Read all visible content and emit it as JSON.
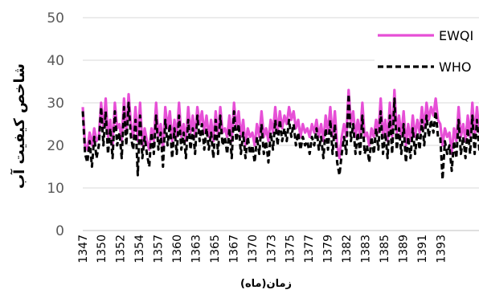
{
  "chart_data": {
    "type": "line",
    "title": "",
    "ylabel": "شاخص کیفیت آب",
    "xlabel": "زمان(ماه)",
    "ylim": [
      0,
      50
    ],
    "yticks": [
      0,
      10,
      20,
      30,
      40,
      50
    ],
    "grid": "horizontal",
    "legend_position": "top-right",
    "x_tick_labels": [
      "1347",
      "1350",
      "1352",
      "1354",
      "1357",
      "1360",
      "1363",
      "1365",
      "1367",
      "1370",
      "1373",
      "1375",
      "1377",
      "1379",
      "1382",
      "1383",
      "1385",
      "1389",
      "1391",
      "1393"
    ],
    "x_tick_fractions": [
      0.0,
      0.0465,
      0.0935,
      0.1405,
      0.1875,
      0.2345,
      0.2815,
      0.3285,
      0.3755,
      0.4225,
      0.4695,
      0.5165,
      0.5635,
      0.6105,
      0.6575,
      0.7045,
      0.7515,
      0.7985,
      0.8455,
      0.8925
    ],
    "series": [
      {
        "name": "EWQI",
        "color": "#e64fd6",
        "style": "solid",
        "values": [
          29,
          20,
          19,
          23,
          20,
          24,
          21,
          22,
          30,
          24,
          31,
          22,
          26,
          20,
          30,
          24,
          25,
          21,
          31,
          23,
          32,
          25,
          22,
          29,
          21,
          30,
          20,
          24,
          21,
          19,
          24,
          21,
          30,
          22,
          25,
          19,
          29,
          24,
          28,
          21,
          26,
          22,
          30,
          22,
          25,
          21,
          29,
          23,
          27,
          22,
          29,
          25,
          28,
          23,
          27,
          22,
          26,
          21,
          28,
          22,
          29,
          23,
          24,
          22,
          27,
          21,
          30,
          24,
          28,
          22,
          26,
          20,
          24,
          22,
          23,
          20,
          25,
          22,
          28,
          22,
          24,
          21,
          26,
          23,
          29,
          23,
          28,
          24,
          27,
          25,
          29,
          26,
          28,
          24,
          26,
          22,
          25,
          23,
          24,
          22,
          25,
          23,
          26,
          22,
          25,
          21,
          27,
          23,
          29,
          22,
          28,
          20,
          17,
          22,
          25,
          22,
          33,
          25,
          28,
          22,
          26,
          22,
          30,
          22,
          23,
          20,
          24,
          22,
          26,
          23,
          31,
          22,
          26,
          21,
          30,
          22,
          33,
          23,
          27,
          22,
          28,
          20,
          25,
          21,
          27,
          22,
          26,
          23,
          29,
          24,
          30,
          26,
          29,
          27,
          31,
          26,
          25,
          20,
          24,
          22,
          23,
          18,
          24,
          21,
          29,
          22,
          25,
          21,
          27,
          22,
          30,
          22,
          29,
          23,
          24,
          22
        ]
      },
      {
        "name": "WHO",
        "color": "#000000",
        "style": "dashed",
        "values": [
          28,
          18,
          16,
          21,
          15,
          22,
          17,
          20,
          29,
          20,
          28,
          18,
          24,
          17,
          28,
          20,
          23,
          17,
          29,
          20,
          30,
          22,
          19,
          26,
          13,
          27,
          17,
          22,
          18,
          15,
          23,
          18,
          27,
          19,
          23,
          15,
          26,
          20,
          25,
          17,
          24,
          18,
          27,
          19,
          23,
          17,
          26,
          19,
          24,
          18,
          27,
          21,
          25,
          19,
          24,
          19,
          23,
          17,
          26,
          18,
          27,
          20,
          22,
          18,
          24,
          17,
          28,
          21,
          25,
          18,
          23,
          17,
          22,
          18,
          20,
          16,
          22,
          18,
          25,
          18,
          21,
          16,
          23,
          19,
          26,
          20,
          26,
          21,
          24,
          21,
          26,
          22,
          25,
          20,
          23,
          19,
          22,
          20,
          21,
          18,
          22,
          20,
          24,
          19,
          22,
          17,
          24,
          19,
          26,
          18,
          25,
          16,
          13,
          18,
          22,
          18,
          32,
          21,
          25,
          18,
          23,
          18,
          27,
          18,
          20,
          16,
          22,
          18,
          24,
          19,
          28,
          18,
          23,
          17,
          27,
          18,
          31,
          19,
          24,
          18,
          25,
          16,
          22,
          17,
          24,
          18,
          23,
          19,
          26,
          20,
          27,
          22,
          26,
          23,
          28,
          22,
          22,
          12,
          21,
          18,
          20,
          14,
          21,
          17,
          26,
          18,
          22,
          17,
          24,
          18,
          27,
          18,
          26,
          19,
          21,
          18
        ]
      }
    ]
  }
}
